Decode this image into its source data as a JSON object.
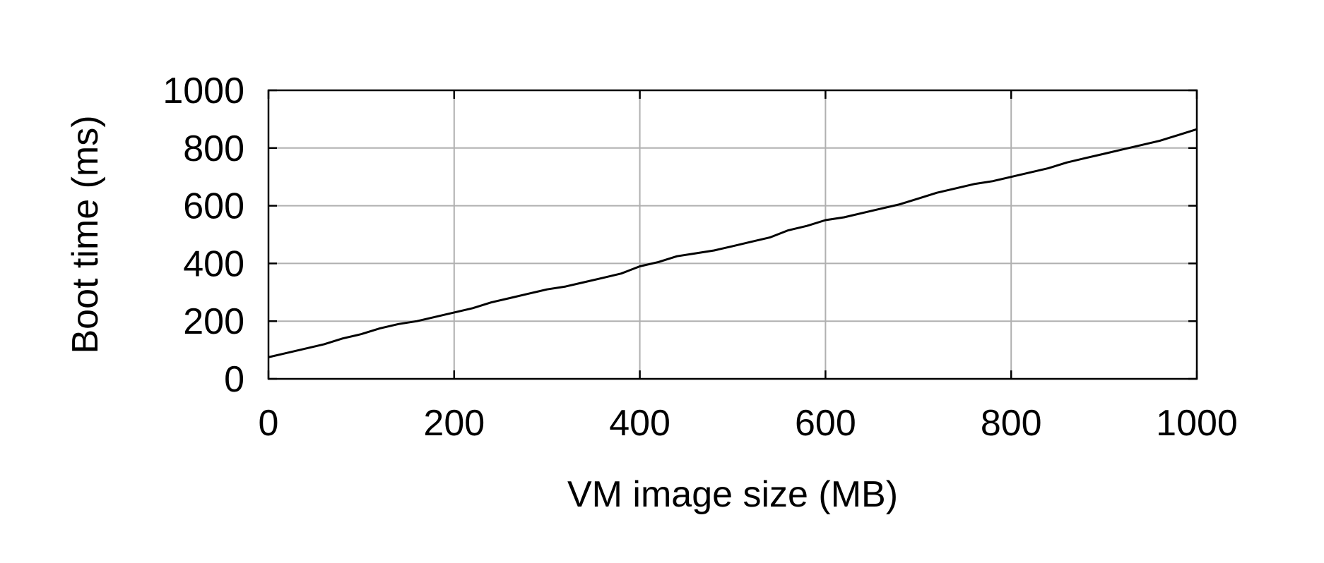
{
  "chart_data": {
    "type": "line",
    "xlabel": "VM image size (MB)",
    "ylabel": "Boot time (ms)",
    "xlim": [
      0,
      1000
    ],
    "ylim": [
      0,
      1000
    ],
    "xticks": [
      0,
      200,
      400,
      600,
      800,
      1000
    ],
    "yticks": [
      0,
      200,
      400,
      600,
      800,
      1000
    ],
    "grid": true,
    "series": [
      {
        "color": "#000000",
        "x": [
          0,
          20,
          40,
          60,
          80,
          100,
          120,
          140,
          160,
          180,
          200,
          220,
          240,
          260,
          280,
          300,
          320,
          340,
          360,
          380,
          400,
          420,
          440,
          460,
          480,
          500,
          520,
          540,
          560,
          580,
          600,
          620,
          640,
          660,
          680,
          700,
          720,
          740,
          760,
          780,
          800,
          820,
          840,
          860,
          880,
          900,
          920,
          940,
          960,
          980,
          1000
        ],
        "y": [
          75,
          90,
          105,
          120,
          140,
          155,
          175,
          190,
          200,
          215,
          230,
          245,
          265,
          280,
          295,
          310,
          320,
          335,
          350,
          365,
          390,
          405,
          425,
          435,
          445,
          460,
          475,
          490,
          515,
          530,
          550,
          560,
          575,
          590,
          605,
          625,
          645,
          660,
          675,
          685,
          700,
          715,
          730,
          750,
          765,
          780,
          795,
          810,
          825,
          845,
          865
        ]
      }
    ]
  }
}
